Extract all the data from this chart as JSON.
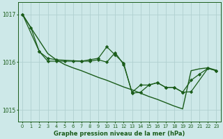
{
  "xlabel": "Graphe pression niveau de la mer (hPa)",
  "ylim": [
    1014.75,
    1017.25
  ],
  "xlim": [
    -0.5,
    23.5
  ],
  "yticks": [
    1015,
    1016,
    1017
  ],
  "xtick_labels": [
    "0",
    "1",
    "2",
    "3",
    "4",
    "5",
    "6",
    "7",
    "8",
    "9",
    "10",
    "11",
    "12",
    "13",
    "14",
    "15",
    "16",
    "17",
    "18",
    "19",
    "20",
    "21",
    "22",
    "23"
  ],
  "bg_color": "#cde8e8",
  "grid_color": "#b0d0d0",
  "line_color": "#1a5c1a",
  "series": [
    {
      "x": [
        0,
        1,
        2,
        3,
        4,
        5,
        6,
        7,
        8,
        9,
        10,
        11,
        12,
        13,
        14,
        15,
        16,
        17,
        18,
        19,
        20,
        21,
        22,
        23
      ],
      "y": [
        1017.0,
        1016.72,
        1016.45,
        1016.18,
        1016.05,
        1015.95,
        1015.88,
        1015.82,
        1015.75,
        1015.68,
        1015.62,
        1015.55,
        1015.48,
        1015.42,
        1015.35,
        1015.28,
        1015.22,
        1015.15,
        1015.08,
        1015.02,
        1015.82,
        1015.86,
        1015.88,
        1015.83
      ],
      "marker": false,
      "lw": 1.0
    },
    {
      "x": [
        0,
        1,
        2,
        3,
        4,
        5,
        6,
        7,
        8,
        9,
        10,
        11,
        12,
        13,
        14,
        15,
        16,
        17,
        18,
        19,
        20,
        21,
        22,
        23
      ],
      "y": [
        1017.0,
        1016.72,
        1016.22,
        1016.02,
        1016.02,
        1016.02,
        1016.02,
        1016.02,
        1016.05,
        1016.08,
        1016.32,
        1016.15,
        1015.98,
        1015.35,
        1015.37,
        1015.52,
        1015.57,
        1015.47,
        1015.47,
        1015.37,
        1015.62,
        1015.75,
        1015.87,
        1015.82
      ],
      "marker": true,
      "lw": 0.9
    },
    {
      "x": [
        0,
        2,
        3,
        4,
        7,
        8,
        9,
        10,
        11,
        12,
        13,
        14,
        15,
        16,
        17,
        18,
        19,
        20,
        22,
        23
      ],
      "y": [
        1017.0,
        1016.22,
        1016.08,
        1016.05,
        1016.02,
        1016.02,
        1016.05,
        1016.0,
        1016.2,
        1015.95,
        1015.37,
        1015.52,
        1015.52,
        1015.57,
        1015.47,
        1015.47,
        1015.37,
        1015.38,
        1015.87,
        1015.82
      ],
      "marker": true,
      "lw": 0.9
    }
  ]
}
